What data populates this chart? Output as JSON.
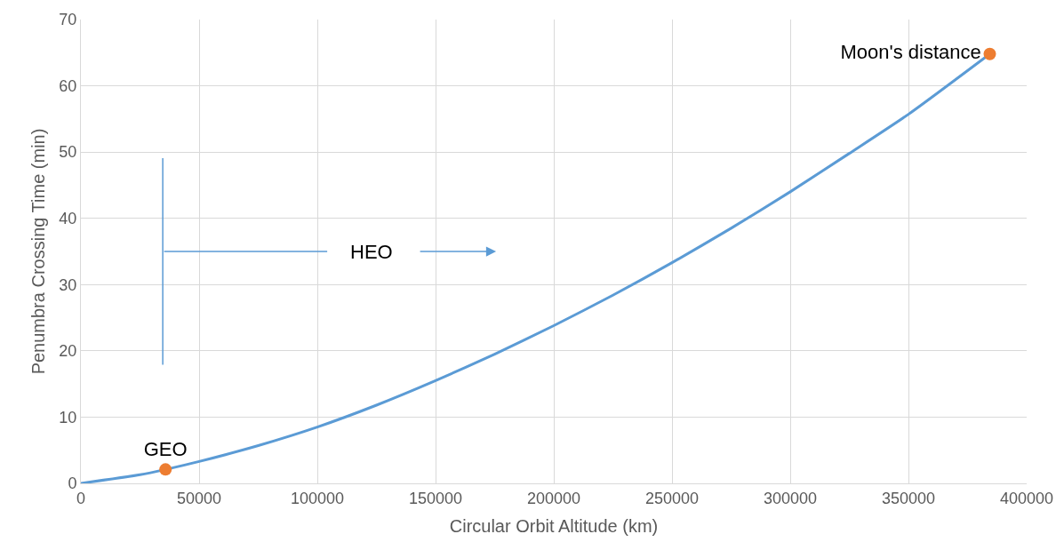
{
  "chart_data": {
    "type": "line",
    "xlabel": "Circular Orbit Altitude (km)",
    "ylabel": "Penumbra Crossing Time (min)",
    "xlim": [
      0,
      400000
    ],
    "xticks": [
      0,
      50000,
      100000,
      150000,
      200000,
      250000,
      300000,
      350000,
      400000
    ],
    "ylim": [
      0,
      70
    ],
    "yticks": [
      0,
      10,
      20,
      30,
      40,
      50,
      60,
      70
    ],
    "grid": true,
    "series": [
      {
        "color": "#5b9bd5",
        "marker": "none",
        "x": [
          0,
          25000,
          35786,
          50000,
          75000,
          100000,
          125000,
          150000,
          175000,
          200000,
          225000,
          250000,
          275000,
          300000,
          325000,
          350000,
          384400
        ],
        "values": [
          0,
          1.3,
          2.1,
          3.3,
          5.7,
          8.5,
          11.8,
          15.5,
          19.5,
          23.8,
          28.4,
          33.3,
          38.5,
          44,
          49.8,
          55.7,
          64.8
        ]
      },
      {
        "type": "scatter",
        "color": "#ed7d31",
        "marker": "circle",
        "x": [
          35786,
          384400
        ],
        "values": [
          2.1,
          64.8
        ],
        "value_labels": [
          "GEO",
          "Moon's distance"
        ]
      }
    ],
    "annotations": [
      "HEO"
    ]
  }
}
